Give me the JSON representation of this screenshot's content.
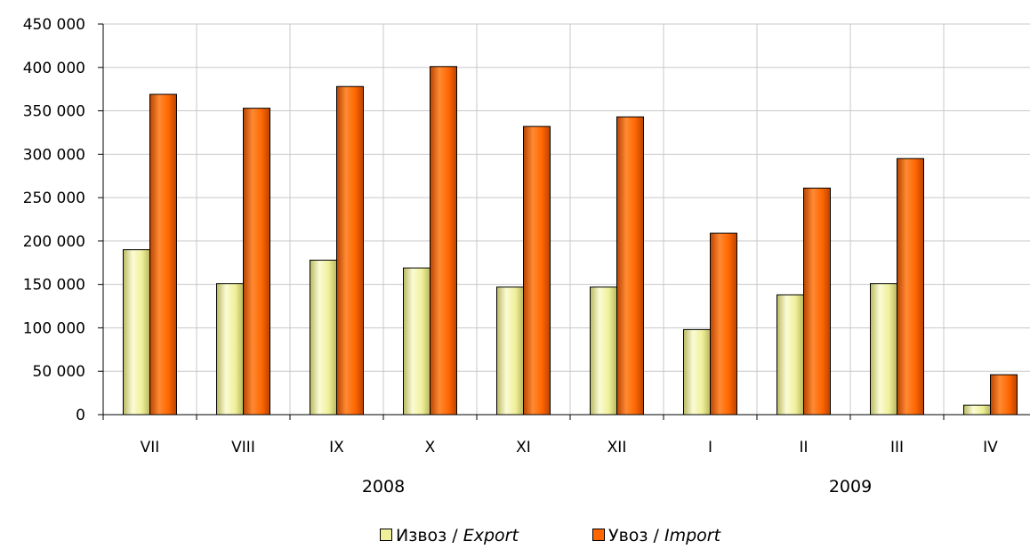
{
  "chart_data": {
    "type": "bar",
    "categories": [
      "VII",
      "VIII",
      "IX",
      "X",
      "XI",
      "XII",
      "I",
      "II",
      "III",
      "IV"
    ],
    "groups": [
      {
        "label": "2008",
        "from": 0,
        "to": 5
      },
      {
        "label": "2009",
        "from": 6,
        "to": 9
      }
    ],
    "series": [
      {
        "name": "Извоз / Export",
        "name_plain": "Извоз",
        "name_sep": " / ",
        "name_en": "Export",
        "color": "#f0f09a",
        "color_light": "#fbfbd6",
        "color_dark": "#b8b860",
        "values": [
          190000,
          151000,
          178000,
          169000,
          147000,
          147000,
          98000,
          138000,
          151000,
          11000
        ]
      },
      {
        "name": "Увоз / Import",
        "name_plain": "Увоз",
        "name_sep": " / ",
        "name_en": "Import",
        "color": "#ff6600",
        "color_light": "#ff8a33",
        "color_dark": "#b84300",
        "values": [
          369000,
          353000,
          378000,
          401000,
          332000,
          343000,
          209000,
          261000,
          295000,
          46000
        ]
      }
    ],
    "ylim": [
      0,
      450000
    ],
    "yticks": [
      0,
      50000,
      100000,
      150000,
      200000,
      250000,
      300000,
      350000,
      400000,
      450000
    ],
    "ytick_labels": [
      "0",
      "50 000",
      "100 000",
      "150 000",
      "200 000",
      "250 000",
      "300 000",
      "350 000",
      "400 000",
      "450 000"
    ],
    "grid": true,
    "legend_position": "bottom",
    "title": "",
    "xlabel": "",
    "ylabel": ""
  }
}
